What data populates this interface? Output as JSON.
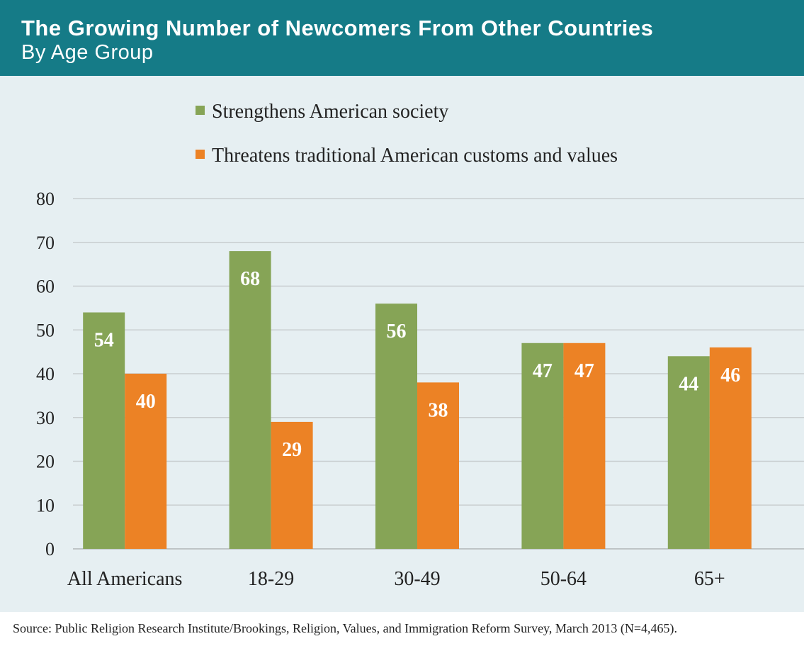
{
  "header": {
    "title": "The Growing Number of Newcomers From Other Countries",
    "subtitle": "By Age Group"
  },
  "colors": {
    "header_bg": "#157b87",
    "panel_bg": "#e6eff2",
    "strengthens": "#86a456",
    "threatens": "#ec8225",
    "grid": "#c8cdcf"
  },
  "chart_data": {
    "type": "bar",
    "categories": [
      "All Americans",
      "18-29",
      "30-49",
      "50-64",
      "65+"
    ],
    "series": [
      {
        "name": "Strengthens American society",
        "values": [
          54,
          68,
          56,
          47,
          44
        ],
        "color": "#86a456"
      },
      {
        "name": "Threatens traditional American customs and values",
        "values": [
          40,
          29,
          38,
          47,
          46
        ],
        "color": "#ec8225"
      }
    ],
    "y_ticks": [
      0,
      10,
      20,
      30,
      40,
      50,
      60,
      70,
      80
    ],
    "ylim": [
      0,
      80
    ],
    "grid": true,
    "legend_position": "top",
    "data_labels": true
  },
  "footer": {
    "source": "Source: Public Religion Research Institute/Brookings, Religion, Values, and Immigration Reform Survey, March 2013 (N=4,465)."
  }
}
